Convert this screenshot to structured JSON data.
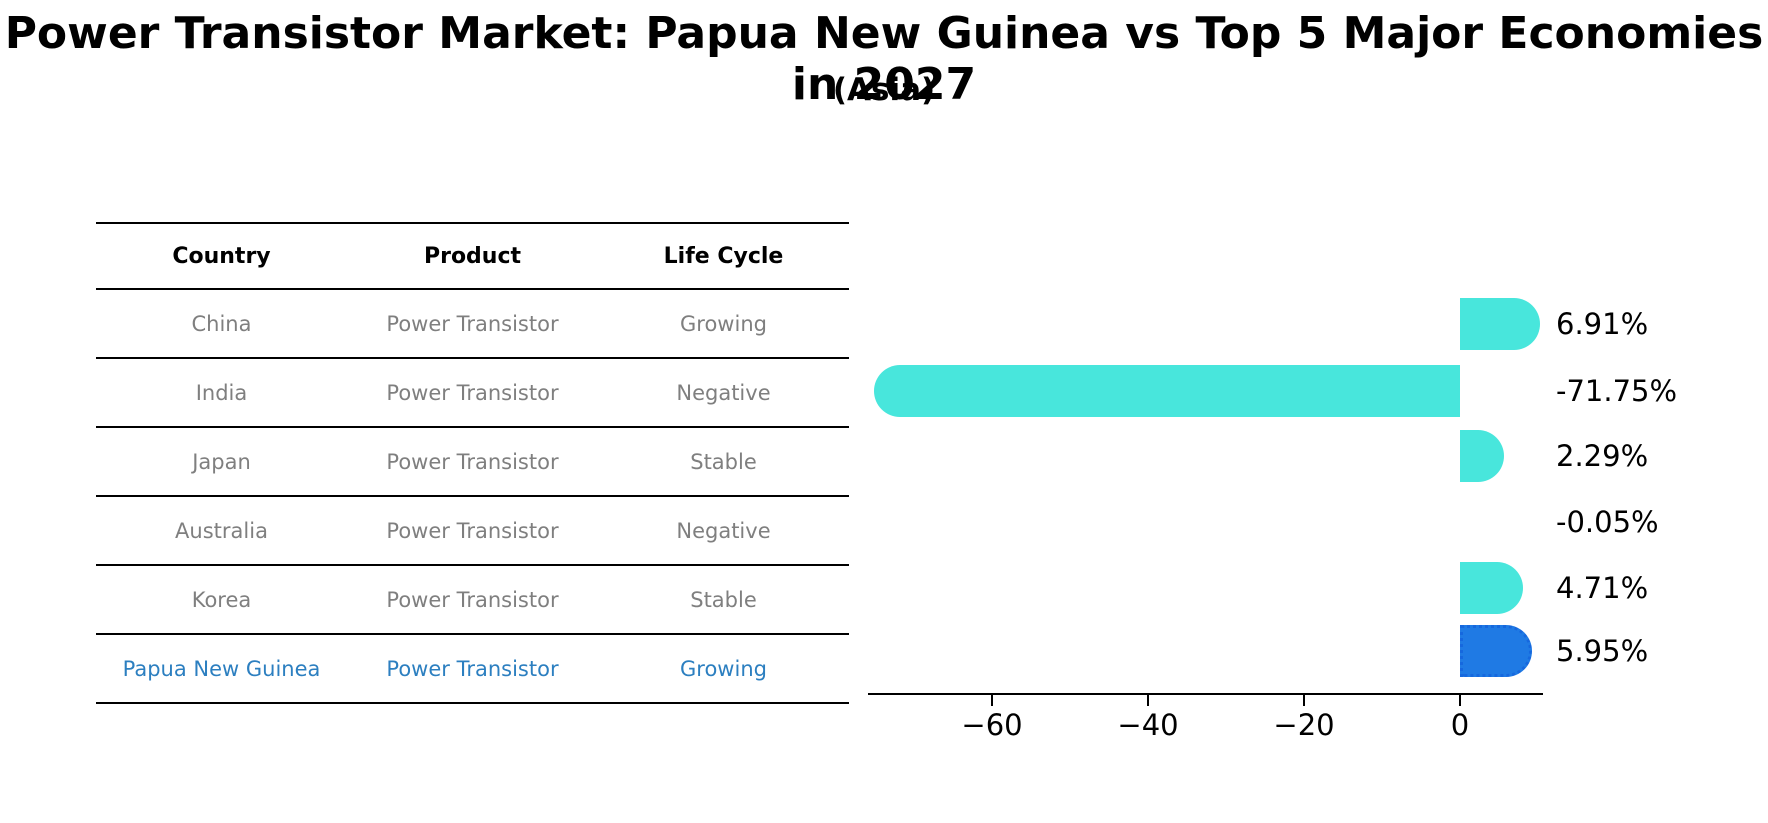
{
  "title": "Power Transistor Market: Papua New Guinea vs Top 5 Major Economies in 2027",
  "subtitle": "(Asia)",
  "table": {
    "headers": [
      "Country",
      "Product",
      "Life Cycle"
    ],
    "rows": [
      {
        "country": "China",
        "product": "Power Transistor",
        "life_cycle": "Growing",
        "highlight": false
      },
      {
        "country": "India",
        "product": "Power Transistor",
        "life_cycle": "Negative",
        "highlight": false
      },
      {
        "country": "Japan",
        "product": "Power Transistor",
        "life_cycle": "Stable",
        "highlight": false
      },
      {
        "country": "Australia",
        "product": "Power Transistor",
        "life_cycle": "Negative",
        "highlight": false
      },
      {
        "country": "Korea",
        "product": "Power Transistor",
        "life_cycle": "Stable",
        "highlight": false
      },
      {
        "country": "Papua New Guinea",
        "product": "Power Transistor",
        "life_cycle": "Growing",
        "highlight": true
      }
    ]
  },
  "chart_data": {
    "type": "bar",
    "orientation": "horizontal",
    "categories": [
      "China",
      "India",
      "Japan",
      "Australia",
      "Korea",
      "Papua New Guinea"
    ],
    "values": [
      6.91,
      -71.75,
      2.29,
      -0.05,
      4.71,
      5.95
    ],
    "labels": [
      "6.91%",
      "-71.75%",
      "2.29%",
      "-0.05%",
      "4.71%",
      "5.95%"
    ],
    "x_ticks": [
      -60,
      -40,
      -20,
      0
    ],
    "x_tick_labels": [
      "−60",
      "−40",
      "−20",
      "0"
    ],
    "xlim": [
      -76,
      11
    ],
    "grid": false,
    "legend": "none",
    "bar_color": "#48E6DC",
    "highlight_index": 5,
    "highlight_color": "#1F7AE4",
    "highlight_border_color": "#1668DE",
    "value_label_color": "#000000",
    "highlight_text_color": "#2c7fc0",
    "table_text_color": "#7f7f7f"
  }
}
